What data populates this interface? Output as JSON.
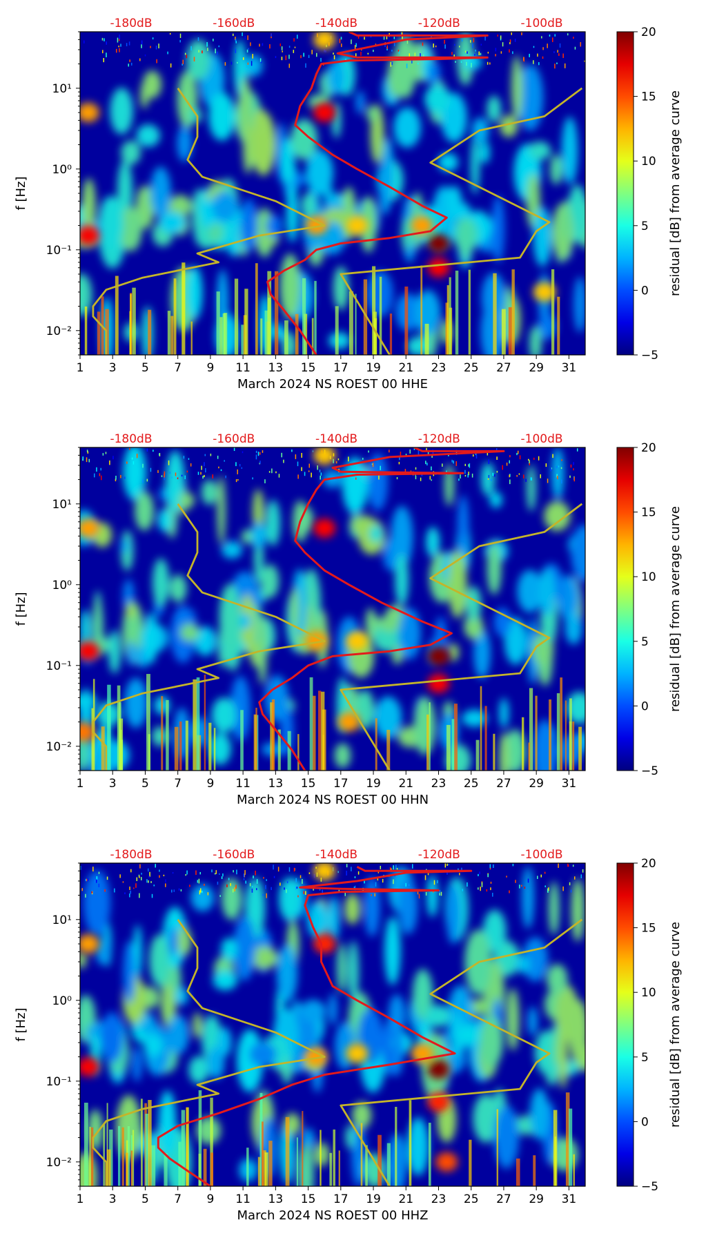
{
  "chart_data": [
    {
      "type": "heatmap",
      "xlabel": "March 2024 NS ROEST 00 HHE",
      "ylabel": "f [Hz]",
      "x_ticks": [
        "1",
        "3",
        "5",
        "7",
        "9",
        "11",
        "13",
        "15",
        "17",
        "19",
        "21",
        "23",
        "25",
        "27",
        "29",
        "31"
      ],
      "xlim": [
        1,
        32
      ],
      "y_ticks": [
        {
          "value": 0.01,
          "label": "10⁻²"
        },
        {
          "value": 0.1,
          "label": "10⁻¹"
        },
        {
          "value": 1,
          "label": "10⁰"
        },
        {
          "value": 10,
          "label": "10¹"
        }
      ],
      "ylim": [
        0.005,
        50
      ],
      "yscale": "log",
      "top_axis_labels": [
        "-180dB",
        "-160dB",
        "-140dB",
        "-120dB",
        "-100dB"
      ],
      "top_axis_positions": [
        1,
        7.3,
        13.6,
        19.9,
        26.2
      ],
      "colorbar": {
        "label": "residual [dB] from average curve",
        "ticks": [
          "20",
          "15",
          "10",
          "5",
          "0",
          "−5"
        ],
        "range": [
          -5,
          20
        ],
        "colormap": "jet"
      },
      "hotspots": [
        {
          "day": 23,
          "freq": 0.12,
          "value": 20
        },
        {
          "day": 23,
          "freq": 0.06,
          "value": 17
        },
        {
          "day": 16,
          "freq": 5,
          "value": 17
        },
        {
          "day": 1.5,
          "freq": 0.15,
          "value": 17
        },
        {
          "day": 1.5,
          "freq": 5,
          "value": 13
        },
        {
          "day": 15.5,
          "freq": 0.2,
          "value": 13
        },
        {
          "day": 18,
          "freq": 0.2,
          "value": 12
        },
        {
          "day": 22,
          "freq": 0.2,
          "value": 13
        },
        {
          "day": 29.5,
          "freq": 0.03,
          "value": 12
        },
        {
          "day": 16,
          "freq": 40,
          "value": 12
        }
      ],
      "series": [
        {
          "name": "average noise curve",
          "color": "#e31a1c",
          "points": [
            [
              15.5,
              0.005
            ],
            [
              14.5,
              0.01
            ],
            [
              13.5,
              0.018
            ],
            [
              12.7,
              0.028
            ],
            [
              12.5,
              0.04
            ],
            [
              13.5,
              0.055
            ],
            [
              14.8,
              0.075
            ],
            [
              15.5,
              0.1
            ],
            [
              17,
              0.12
            ],
            [
              20,
              0.14
            ],
            [
              22.5,
              0.17
            ],
            [
              23.5,
              0.25
            ],
            [
              22,
              0.35
            ],
            [
              20,
              0.6
            ],
            [
              18,
              1
            ],
            [
              16.5,
              1.5
            ],
            [
              15,
              2.5
            ],
            [
              14.2,
              3.5
            ],
            [
              14.5,
              6
            ],
            [
              15.2,
              10
            ],
            [
              15.5,
              15
            ],
            [
              15.8,
              20
            ],
            [
              17.5,
              22
            ],
            [
              23,
              23
            ],
            [
              26,
              24
            ],
            [
              18,
              24
            ],
            [
              16.8,
              27
            ],
            [
              21,
              40
            ],
            [
              26,
              45
            ],
            [
              18,
              45
            ],
            [
              17.5,
              50
            ]
          ]
        },
        {
          "name": "low noise model",
          "color": "#c4b42a",
          "points": [
            [
              2.6,
              0.005
            ],
            [
              2.6,
              0.01
            ],
            [
              1.8,
              0.015
            ],
            [
              1.8,
              0.02
            ],
            [
              2.6,
              0.032
            ],
            [
              4.8,
              0.045
            ],
            [
              9.5,
              0.07
            ],
            [
              8.2,
              0.09
            ],
            [
              12,
              0.15
            ],
            [
              16,
              0.2
            ],
            [
              13,
              0.4
            ],
            [
              8.5,
              0.8
            ],
            [
              7.6,
              1.3
            ],
            [
              8.2,
              2.5
            ],
            [
              8.2,
              4.5
            ],
            [
              7,
              10
            ]
          ]
        },
        {
          "name": "high noise model",
          "color": "#c4b42a",
          "points": [
            [
              20,
              0.005
            ],
            [
              17,
              0.05
            ],
            [
              28,
              0.08
            ],
            [
              29,
              0.17
            ],
            [
              29.8,
              0.22
            ],
            [
              22.5,
              1.2
            ],
            [
              25.5,
              3
            ],
            [
              29.5,
              4.5
            ],
            [
              31.8,
              10
            ]
          ]
        }
      ]
    },
    {
      "type": "heatmap",
      "xlabel": "March 2024 NS ROEST 00 HHN",
      "ylabel": "f [Hz]",
      "x_ticks": [
        "1",
        "3",
        "5",
        "7",
        "9",
        "11",
        "13",
        "15",
        "17",
        "19",
        "21",
        "23",
        "25",
        "27",
        "29",
        "31"
      ],
      "xlim": [
        1,
        32
      ],
      "y_ticks": [
        {
          "value": 0.01,
          "label": "10⁻²"
        },
        {
          "value": 0.1,
          "label": "10⁻¹"
        },
        {
          "value": 1,
          "label": "10⁰"
        },
        {
          "value": 10,
          "label": "10¹"
        }
      ],
      "ylim": [
        0.005,
        50
      ],
      "yscale": "log",
      "top_axis_labels": [
        "-180dB",
        "-160dB",
        "-140dB",
        "-120dB",
        "-100dB"
      ],
      "top_axis_positions": [
        1,
        7.3,
        13.6,
        19.9,
        26.2
      ],
      "colorbar": {
        "label": "residual [dB] from average curve",
        "ticks": [
          "20",
          "15",
          "10",
          "5",
          "0",
          "−5"
        ],
        "range": [
          -5,
          20
        ],
        "colormap": "jet"
      },
      "hotspots": [
        {
          "day": 23,
          "freq": 0.13,
          "value": 20
        },
        {
          "day": 23,
          "freq": 0.06,
          "value": 17
        },
        {
          "day": 16,
          "freq": 5,
          "value": 17
        },
        {
          "day": 1.5,
          "freq": 0.15,
          "value": 17
        },
        {
          "day": 1.5,
          "freq": 5,
          "value": 13
        },
        {
          "day": 15.5,
          "freq": 0.2,
          "value": 13
        },
        {
          "day": 18,
          "freq": 0.2,
          "value": 12
        },
        {
          "day": 17.5,
          "freq": 0.02,
          "value": 13
        },
        {
          "day": 1.2,
          "freq": 0.015,
          "value": 14
        },
        {
          "day": 16,
          "freq": 40,
          "value": 12
        }
      ],
      "series": [
        {
          "name": "average noise curve",
          "color": "#e31a1c",
          "points": [
            [
              14.8,
              0.005
            ],
            [
              14,
              0.009
            ],
            [
              13,
              0.016
            ],
            [
              12.2,
              0.025
            ],
            [
              12,
              0.035
            ],
            [
              12.8,
              0.05
            ],
            [
              14,
              0.07
            ],
            [
              15,
              0.1
            ],
            [
              16.5,
              0.13
            ],
            [
              20,
              0.15
            ],
            [
              22.5,
              0.18
            ],
            [
              23.8,
              0.25
            ],
            [
              22,
              0.35
            ],
            [
              19.5,
              0.6
            ],
            [
              17.5,
              1
            ],
            [
              16,
              1.5
            ],
            [
              14.8,
              2.5
            ],
            [
              14.2,
              3.5
            ],
            [
              14.5,
              6
            ],
            [
              15,
              10
            ],
            [
              15.5,
              15
            ],
            [
              16,
              20
            ],
            [
              18,
              23
            ],
            [
              24.5,
              24
            ],
            [
              17,
              25
            ],
            [
              16.5,
              28
            ],
            [
              20,
              38
            ],
            [
              27,
              45
            ],
            [
              22,
              45
            ],
            [
              21.5,
              50
            ]
          ]
        },
        {
          "name": "low noise model",
          "color": "#c4b42a",
          "points": [
            [
              2.6,
              0.005
            ],
            [
              2.6,
              0.01
            ],
            [
              1.8,
              0.015
            ],
            [
              1.8,
              0.02
            ],
            [
              2.6,
              0.032
            ],
            [
              4.8,
              0.045
            ],
            [
              9.5,
              0.07
            ],
            [
              8.2,
              0.09
            ],
            [
              12,
              0.15
            ],
            [
              16,
              0.2
            ],
            [
              13,
              0.4
            ],
            [
              8.5,
              0.8
            ],
            [
              7.6,
              1.3
            ],
            [
              8.2,
              2.5
            ],
            [
              8.2,
              4.5
            ],
            [
              7,
              10
            ]
          ]
        },
        {
          "name": "high noise model",
          "color": "#c4b42a",
          "points": [
            [
              20,
              0.005
            ],
            [
              17,
              0.05
            ],
            [
              28,
              0.08
            ],
            [
              29,
              0.17
            ],
            [
              29.8,
              0.22
            ],
            [
              22.5,
              1.2
            ],
            [
              25.5,
              3
            ],
            [
              29.5,
              4.5
            ],
            [
              31.8,
              10
            ]
          ]
        }
      ]
    },
    {
      "type": "heatmap",
      "xlabel": "March 2024 NS ROEST 00 HHZ",
      "ylabel": "f [Hz]",
      "x_ticks": [
        "1",
        "3",
        "5",
        "7",
        "9",
        "11",
        "13",
        "15",
        "17",
        "19",
        "21",
        "23",
        "25",
        "27",
        "29",
        "31"
      ],
      "xlim": [
        1,
        32
      ],
      "y_ticks": [
        {
          "value": 0.01,
          "label": "10⁻²"
        },
        {
          "value": 0.1,
          "label": "10⁻¹"
        },
        {
          "value": 1,
          "label": "10⁰"
        },
        {
          "value": 10,
          "label": "10¹"
        }
      ],
      "ylim": [
        0.005,
        50
      ],
      "yscale": "log",
      "top_axis_labels": [
        "-180dB",
        "-160dB",
        "-140dB",
        "-120dB",
        "-100dB"
      ],
      "top_axis_positions": [
        1,
        7.3,
        13.6,
        19.9,
        26.2
      ],
      "colorbar": {
        "label": "residual [dB] from average curve",
        "ticks": [
          "20",
          "15",
          "10",
          "5",
          "0",
          "−5"
        ],
        "range": [
          -5,
          20
        ],
        "colormap": "jet"
      },
      "hotspots": [
        {
          "day": 23,
          "freq": 0.14,
          "value": 20
        },
        {
          "day": 23,
          "freq": 0.055,
          "value": 16
        },
        {
          "day": 16,
          "freq": 5,
          "value": 16
        },
        {
          "day": 1.5,
          "freq": 0.15,
          "value": 17
        },
        {
          "day": 1.5,
          "freq": 5,
          "value": 13
        },
        {
          "day": 15.5,
          "freq": 0.2,
          "value": 13
        },
        {
          "day": 18,
          "freq": 0.22,
          "value": 12
        },
        {
          "day": 22,
          "freq": 0.22,
          "value": 13
        },
        {
          "day": 23.5,
          "freq": 0.01,
          "value": 15
        },
        {
          "day": 16,
          "freq": 40,
          "value": 12
        }
      ],
      "series": [
        {
          "name": "average noise curve",
          "color": "#e31a1c",
          "points": [
            [
              9,
              0.005
            ],
            [
              7.5,
              0.008
            ],
            [
              6.5,
              0.011
            ],
            [
              5.8,
              0.015
            ],
            [
              5.8,
              0.02
            ],
            [
              7,
              0.028
            ],
            [
              9.5,
              0.04
            ],
            [
              12,
              0.06
            ],
            [
              14,
              0.09
            ],
            [
              16,
              0.12
            ],
            [
              20,
              0.16
            ],
            [
              24,
              0.22
            ],
            [
              22,
              0.35
            ],
            [
              20,
              0.6
            ],
            [
              18,
              1
            ],
            [
              16.5,
              1.5
            ],
            [
              15.8,
              3
            ],
            [
              15.8,
              5
            ],
            [
              15.3,
              8
            ],
            [
              14.8,
              15
            ],
            [
              15,
              20
            ],
            [
              17,
              22
            ],
            [
              23,
              23
            ],
            [
              17,
              24
            ],
            [
              14.5,
              25
            ],
            [
              18,
              30
            ],
            [
              21,
              38
            ],
            [
              25,
              40
            ],
            [
              18.5,
              40
            ],
            [
              18,
              45
            ]
          ]
        },
        {
          "name": "low noise model",
          "color": "#c4b42a",
          "points": [
            [
              2.6,
              0.005
            ],
            [
              2.6,
              0.01
            ],
            [
              1.8,
              0.015
            ],
            [
              1.8,
              0.02
            ],
            [
              2.6,
              0.032
            ],
            [
              4.8,
              0.045
            ],
            [
              9.5,
              0.07
            ],
            [
              8.2,
              0.09
            ],
            [
              12,
              0.15
            ],
            [
              16,
              0.2
            ],
            [
              13,
              0.4
            ],
            [
              8.5,
              0.8
            ],
            [
              7.6,
              1.3
            ],
            [
              8.2,
              2.5
            ],
            [
              8.2,
              4.5
            ],
            [
              7,
              10
            ]
          ]
        },
        {
          "name": "high noise model",
          "color": "#c4b42a",
          "points": [
            [
              20,
              0.005
            ],
            [
              17,
              0.05
            ],
            [
              28,
              0.08
            ],
            [
              29,
              0.17
            ],
            [
              29.8,
              0.22
            ],
            [
              22.5,
              1.2
            ],
            [
              25.5,
              3
            ],
            [
              29.5,
              4.5
            ],
            [
              31.8,
              10
            ]
          ]
        }
      ]
    }
  ]
}
